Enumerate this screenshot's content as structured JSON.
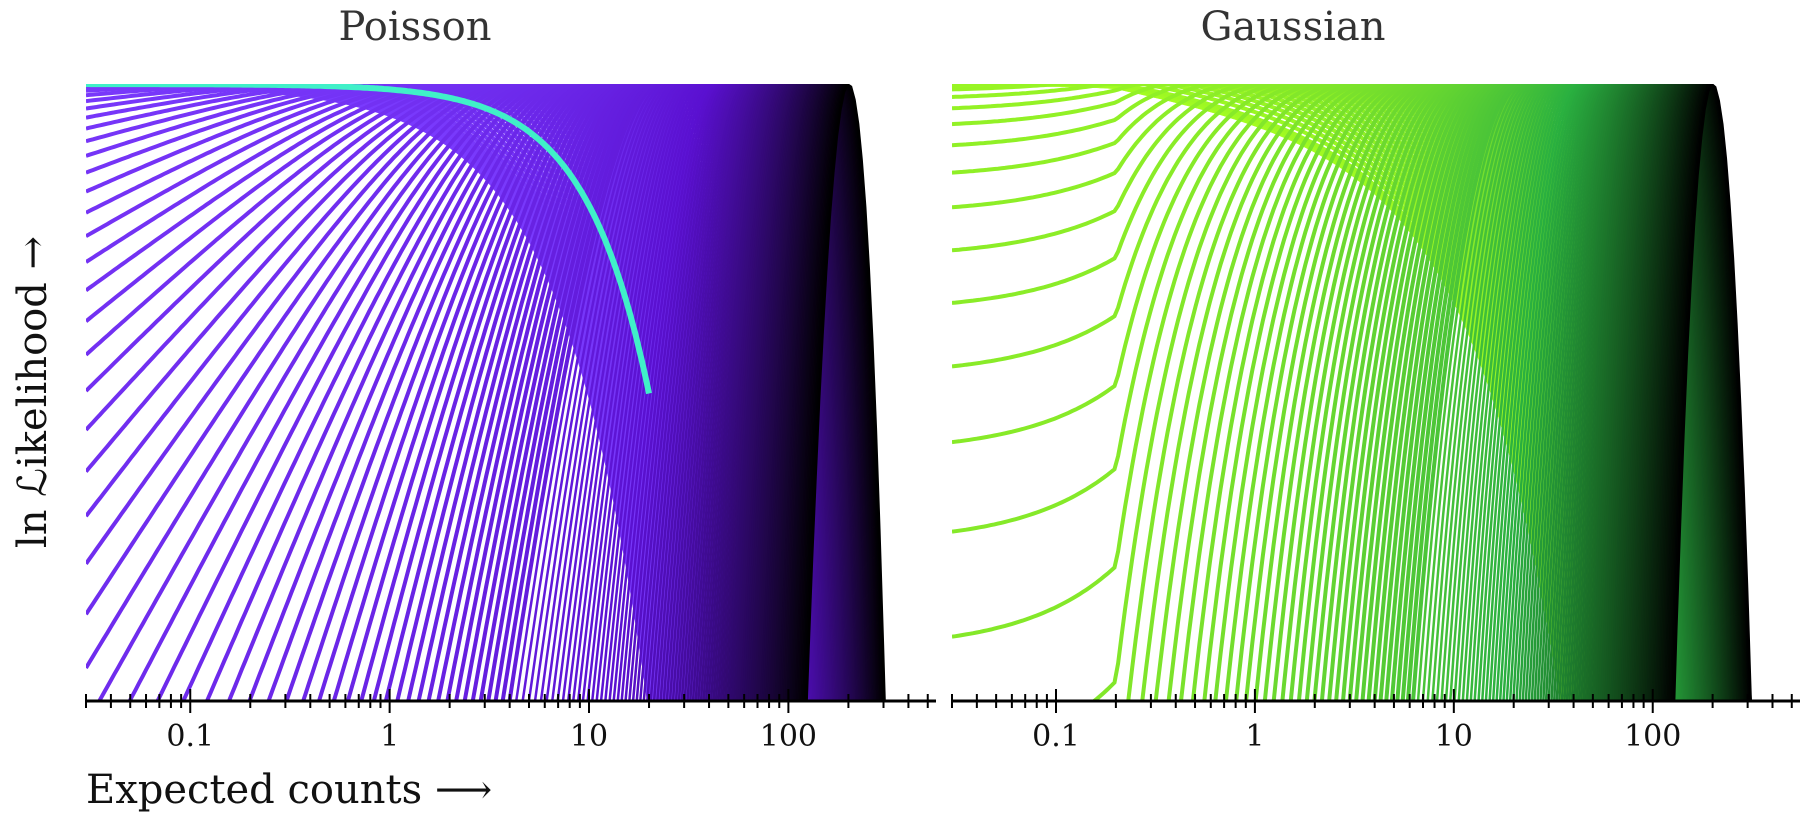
{
  "chart_data": [
    {
      "type": "line",
      "title": "Poisson",
      "xlabel": "Expected counts ⟶",
      "ylabel": "ln ℒikelihood →",
      "x_scale": "log",
      "xlim": [
        0.03,
        550
      ],
      "ylim": [
        -20,
        0
      ],
      "x_tick_labels": [
        "0.1",
        "1",
        "10",
        "100"
      ],
      "x_ticks": [
        0.1,
        1,
        10,
        100
      ],
      "y_ticks_shown": false,
      "grid": false,
      "legend": "none",
      "observed_counts_range": [
        0,
        200
      ],
      "highlight_curve": "envelope of maxima",
      "colors": {
        "low": "#7b3cff",
        "mid": "#5a10d0",
        "high": "#000000",
        "highlight": "#40f0c8"
      }
    },
    {
      "type": "line",
      "title": "Gaussian",
      "xlabel": "",
      "ylabel": "",
      "x_scale": "log",
      "xlim": [
        0.03,
        550
      ],
      "ylim": [
        -20,
        0
      ],
      "x_tick_labels": [
        "0.1",
        "1",
        "10",
        "100"
      ],
      "x_ticks": [
        0.1,
        1,
        10,
        100
      ],
      "y_ticks_shown": false,
      "grid": false,
      "legend": "none",
      "observed_counts_range": [
        0,
        200
      ],
      "colors": {
        "low": "#a8ff20",
        "mid": "#2ab040",
        "high": "#000000"
      }
    }
  ]
}
